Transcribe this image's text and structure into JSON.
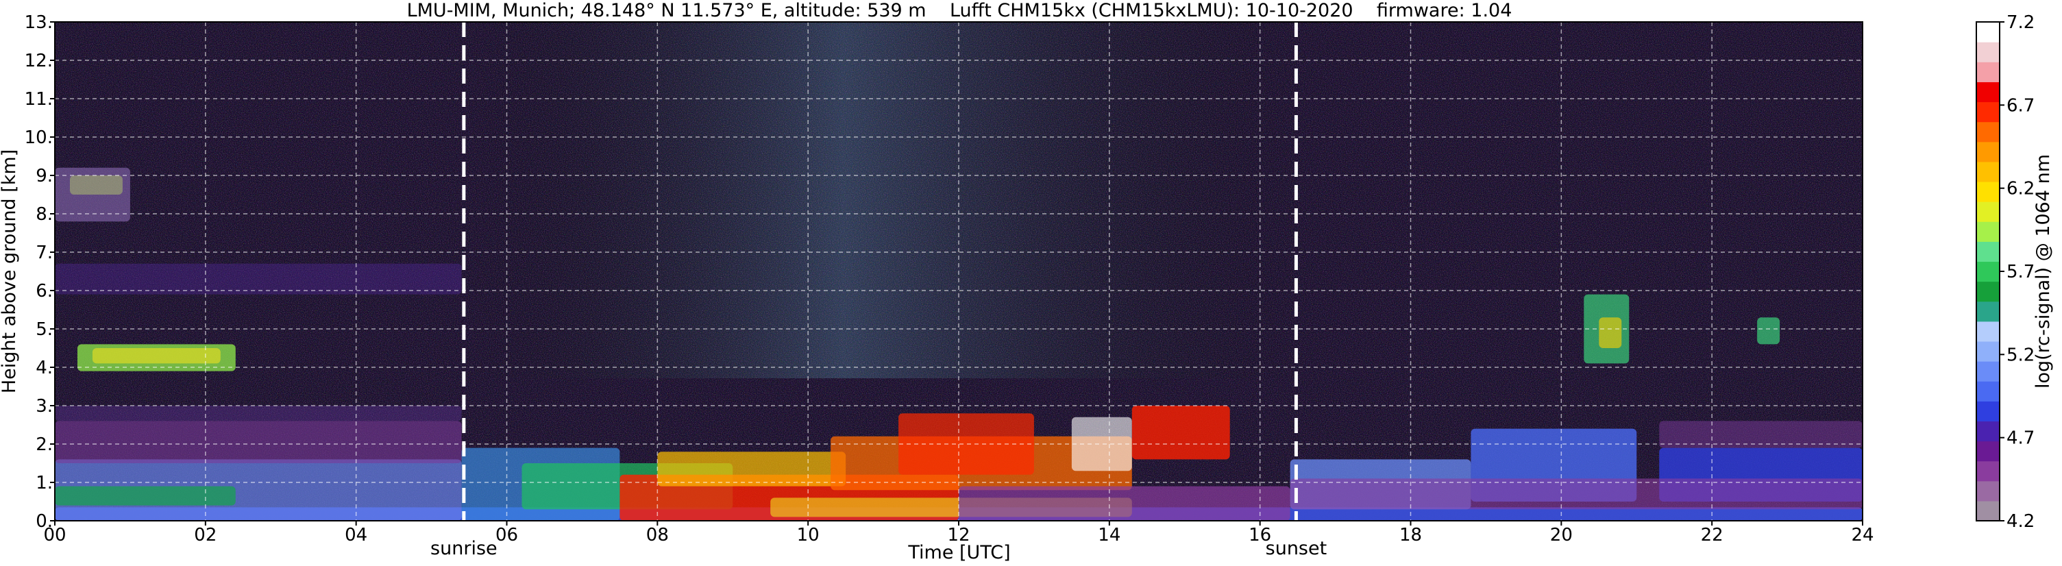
{
  "chart_data": {
    "type": "heatmap",
    "title": "LMU-MIM, Munich; 48.148° N 11.573° E, altitude: 539 m    Lufft CHM15kx (CHM15kxLMU): 10-10-2020    firmware: 1.04",
    "xlabel": "Time [UTC]",
    "ylabel": "Height above ground [km]",
    "xlim": [
      0,
      24
    ],
    "ylim": [
      0,
      13
    ],
    "x_ticks": [
      "00",
      "02",
      "04",
      "06",
      "08",
      "10",
      "12",
      "14",
      "16",
      "18",
      "20",
      "22",
      "24"
    ],
    "y_ticks": [
      "0.",
      "1.",
      "2.",
      "3.",
      "4.",
      "5.",
      "6.",
      "7.",
      "8.",
      "9.",
      "10.",
      "11.",
      "12.",
      "13."
    ],
    "grid": true,
    "colorbar": {
      "label": "log(rc-signal) @ 1064 nm",
      "range": [
        4.2,
        7.2
      ],
      "ticks": [
        "4.2",
        "4.7",
        "5.2",
        "5.7",
        "6.2",
        "6.7",
        "7.2"
      ],
      "colors": [
        "#a08fa3",
        "#9a6aa3",
        "#8a3c9e",
        "#6a1a94",
        "#4a22b0",
        "#2f3fe0",
        "#4a6af2",
        "#6a8cf8",
        "#8fb0fa",
        "#b4cdfc",
        "#2aa58a",
        "#16a03a",
        "#2fc85a",
        "#5fe08e",
        "#a6f04a",
        "#e2f024",
        "#ffe000",
        "#ffc000",
        "#ff9a00",
        "#ff6a00",
        "#ff2a00",
        "#f00000",
        "#f4a0a8",
        "#f2d0d4",
        "#ffffff"
      ]
    },
    "events": [
      {
        "label": "sunrise",
        "time": 5.43
      },
      {
        "label": "sunset",
        "time": 16.48
      }
    ]
  }
}
